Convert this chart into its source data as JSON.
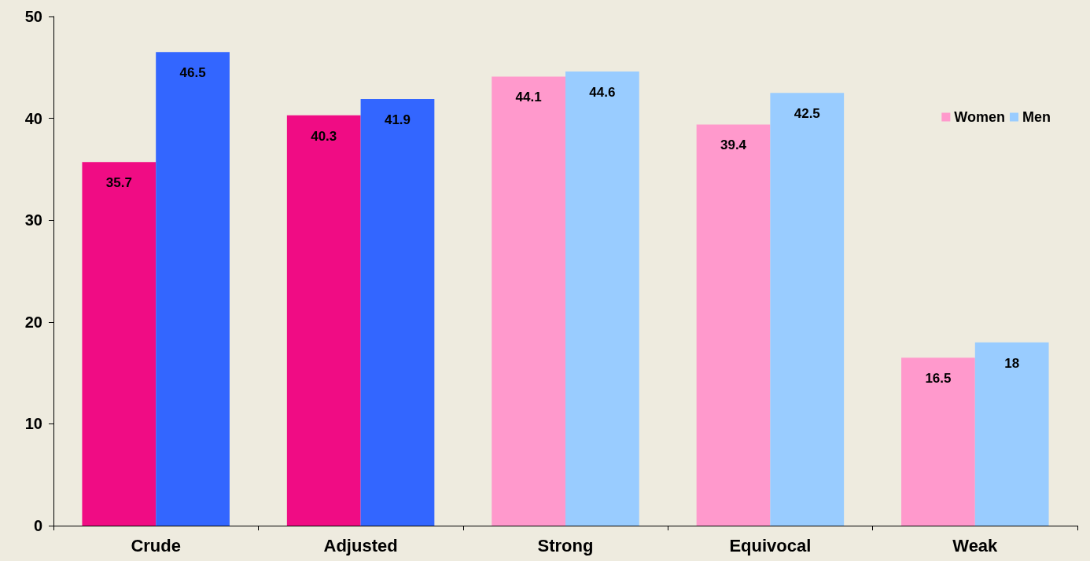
{
  "chart_data": {
    "type": "bar",
    "categories": [
      "Crude",
      "Adjusted",
      "Strong",
      "Equivocal",
      "Weak"
    ],
    "series": [
      {
        "name": "Women",
        "color": "#ff99cc",
        "colors": [
          "#f00c84",
          "#f00c84",
          "#ff99cc",
          "#ff99cc",
          "#ff99cc"
        ],
        "values": [
          35.7,
          40.3,
          44.1,
          39.4,
          16.5
        ]
      },
      {
        "name": "Men",
        "color": "#99ccff",
        "colors": [
          "#3366ff",
          "#3366ff",
          "#99ccff",
          "#99ccff",
          "#99ccff"
        ],
        "values": [
          46.5,
          41.9,
          44.6,
          42.5,
          18
        ]
      }
    ],
    "ylim": [
      0,
      50
    ],
    "yticks": [
      0,
      10,
      20,
      30,
      40,
      50
    ],
    "grid": false,
    "legend": "right",
    "data_labels": true
  }
}
